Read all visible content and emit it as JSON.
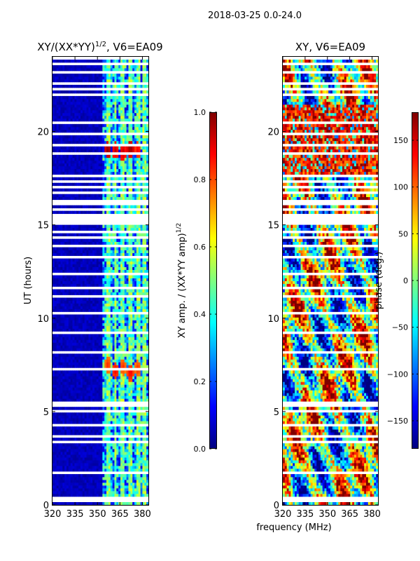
{
  "suptitle": "2018-03-25 0.0-24.0",
  "xlabel_shared": "frequency (MHz)",
  "colors": {
    "masked": "#ffffff",
    "jet_stops": [
      "#00007f",
      "#0000ff",
      "#007fff",
      "#00ffff",
      "#7fff7f",
      "#ffff00",
      "#ff7f00",
      "#ff0000",
      "#7f0000"
    ]
  },
  "chart_data": [
    {
      "type": "heatmap",
      "title": "XY/(XX*YY)",
      "title_exponent": "1/2",
      "title_suffix": ", V6=EA09",
      "xlabel": "",
      "ylabel": "UT (hours)",
      "xlim": [
        320,
        384
      ],
      "ylim": [
        0,
        24
      ],
      "xticks": [
        320,
        335,
        350,
        365,
        380
      ],
      "yticks": [
        0,
        5,
        10,
        15,
        20
      ],
      "colorbar": {
        "label": "XY amp. / (XX*YY amp)",
        "label_exponent": "1/2",
        "vmin": 0.0,
        "vmax": 1.0,
        "ticks": [
          0.0,
          0.2,
          0.4,
          0.6,
          0.8,
          1.0
        ],
        "tick_labels": [
          "0.0",
          "0.2",
          "0.4",
          "0.6",
          "0.8",
          "1.0"
        ]
      },
      "masked_utc_hours": [
        0.2,
        0.4,
        1.5,
        1.7,
        2.7,
        3.4,
        3.7,
        4.3,
        4.5,
        5.0,
        5.3,
        5.5,
        6.6,
        6.9,
        7.3,
        8.2,
        8.4,
        9.2,
        9.9,
        10.3,
        10.8,
        11.2,
        11.6,
        12.0,
        12.4,
        12.9,
        13.3,
        13.9,
        14.3,
        14.6,
        15.5,
        15.8,
        16.1,
        16.3,
        16.7,
        17.0,
        17.3,
        17.6,
        18.8,
        19.3,
        19.9,
        20.5,
        21.0,
        22.0,
        22.3,
        22.6,
        23.2,
        23.6,
        23.9
      ],
      "masked_blocks": [
        [
          15.0,
          15.5
        ]
      ],
      "data_bands": {
        "description": "low amplitude (~0.05) below 353 MHz; structured 0.2-1.0 amplitude in 353-383 MHz",
        "bright_channel_mhz": [
          357,
          362,
          367,
          372,
          377,
          381
        ],
        "hot_spots": [
          [
            357,
            19.0,
            1.0
          ],
          [
            362,
            19.0,
            0.95
          ],
          [
            367,
            18.9,
            0.95
          ],
          [
            372,
            19.1,
            1.0
          ],
          [
            377,
            19.0,
            0.9
          ],
          [
            357,
            7.5,
            0.85
          ],
          [
            362,
            7.2,
            0.9
          ],
          [
            367,
            7.4,
            0.85
          ],
          [
            372,
            7.1,
            0.9
          ],
          [
            377,
            7.3,
            0.85
          ]
        ]
      }
    },
    {
      "type": "heatmap",
      "title": "XY, V6=EA09",
      "xlabel": "",
      "ylabel": "",
      "xlim": [
        320,
        384
      ],
      "ylim": [
        0,
        24
      ],
      "xticks": [
        320,
        335,
        350,
        365,
        380
      ],
      "yticks": [
        0,
        5,
        10,
        15,
        20
      ],
      "colorbar": {
        "label": "phase (deg.)",
        "vmin": -180,
        "vmax": 180,
        "ticks": [
          -150,
          -100,
          -50,
          0,
          50,
          100,
          150
        ],
        "tick_labels": [
          "−150",
          "−100",
          "−50",
          "0",
          "50",
          "100",
          "150"
        ]
      },
      "masked_utc_hours": [
        0.2,
        0.4,
        1.5,
        1.7,
        2.7,
        3.4,
        3.7,
        4.3,
        4.5,
        5.0,
        5.3,
        5.5,
        6.6,
        6.9,
        7.3,
        8.2,
        8.4,
        9.2,
        9.9,
        10.3,
        10.8,
        11.2,
        11.6,
        12.0,
        12.4,
        12.9,
        13.3,
        13.9,
        14.3,
        14.6,
        15.5,
        15.8,
        16.1,
        16.3,
        16.7,
        17.0,
        17.3,
        17.6,
        18.8,
        19.3,
        19.9,
        20.5,
        21.0,
        22.0,
        22.3,
        22.6,
        23.2,
        23.6,
        23.9
      ],
      "masked_blocks": [
        [
          15.0,
          15.5
        ]
      ],
      "data_bands": {
        "description": "phase noise; red/dark-red (~+150 deg) dominant 17.5-21.5 h, mixed blue/yellow elsewhere",
        "high_phase_hours": [
          17.5,
          21.5
        ]
      }
    }
  ]
}
